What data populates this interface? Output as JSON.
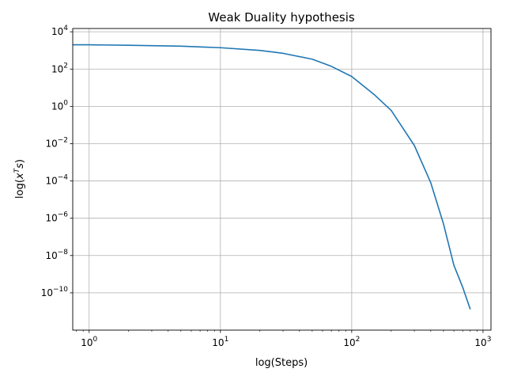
{
  "chart_data": {
    "type": "line",
    "title": "Weak Duality hypothesis",
    "xlabel": "log(Steps)",
    "ylabel": "log(x^T s)",
    "xscale": "log",
    "yscale": "log",
    "xlim": [
      0.75,
      1150
    ],
    "ylim": [
      1e-12,
      15000
    ],
    "grid": true,
    "x_ticks": [
      {
        "value": 1,
        "mantissa": "10",
        "exp": "0"
      },
      {
        "value": 10,
        "mantissa": "10",
        "exp": "1"
      },
      {
        "value": 100,
        "mantissa": "10",
        "exp": "2"
      },
      {
        "value": 1000,
        "mantissa": "10",
        "exp": "3"
      }
    ],
    "y_ticks": [
      {
        "value": 10000.0,
        "mantissa": "10",
        "exp": "4"
      },
      {
        "value": 100.0,
        "mantissa": "10",
        "exp": "2"
      },
      {
        "value": 1.0,
        "mantissa": "10",
        "exp": "0"
      },
      {
        "value": 0.01,
        "mantissa": "10",
        "exp": "−2"
      },
      {
        "value": 0.0001,
        "mantissa": "10",
        "exp": "−4"
      },
      {
        "value": 1e-06,
        "mantissa": "10",
        "exp": "−6"
      },
      {
        "value": 1e-08,
        "mantissa": "10",
        "exp": "−8"
      },
      {
        "value": 1e-10,
        "mantissa": "10",
        "exp": "−10"
      }
    ],
    "series": [
      {
        "color": "#1f77b4",
        "x": [
          0.75,
          1,
          2,
          5,
          10,
          20,
          30,
          50,
          70,
          100,
          150,
          200,
          300,
          400,
          500,
          600,
          700,
          800
        ],
        "y": [
          2000,
          2000,
          1900,
          1700,
          1400,
          1000,
          700,
          340,
          140,
          40,
          4,
          0.6,
          0.008,
          8e-05,
          5e-07,
          3e-09,
          2e-10,
          1.3e-11
        ]
      }
    ]
  }
}
